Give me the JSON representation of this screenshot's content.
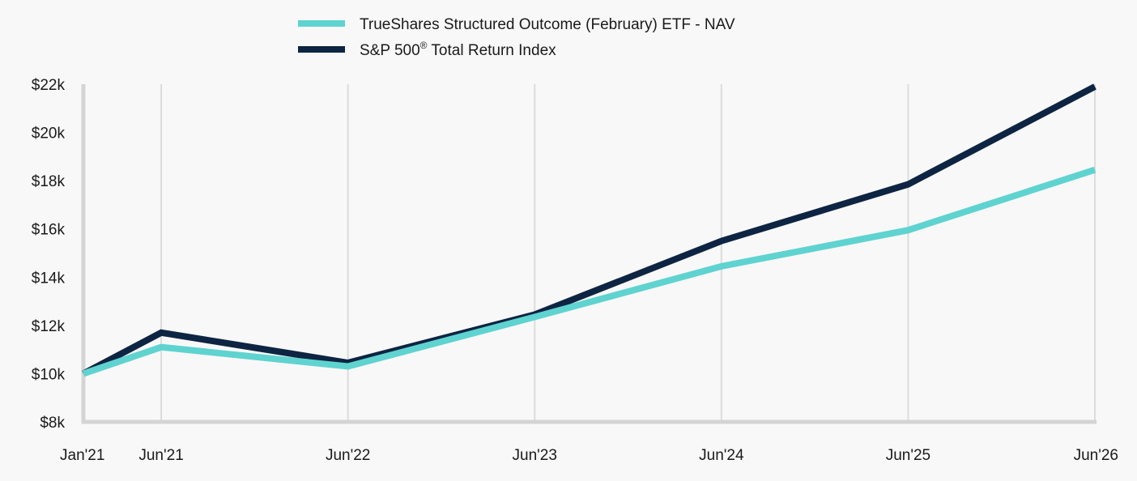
{
  "chart_data": {
    "type": "line",
    "title": "",
    "xlabel": "",
    "ylabel": "",
    "x": [
      "Jan'21",
      "Jun'21",
      "Jun'22",
      "Jun'23",
      "Jun'24",
      "Jun'25",
      "Jun'26"
    ],
    "ylim": [
      8000,
      22000
    ],
    "y_ticks": [
      8000,
      10000,
      12000,
      14000,
      16000,
      18000,
      20000,
      22000
    ],
    "y_tick_labels": [
      "$8k",
      "$10k",
      "$12k",
      "$14k",
      "$16k",
      "$18k",
      "$20k",
      "$22k"
    ],
    "grid": "vertical",
    "legend_position": "top-left",
    "series": [
      {
        "name": "TrueShares Structured Outcome (February) ETF - NAV",
        "color": "#5fd3d0",
        "values": [
          10000,
          11100,
          10300,
          12350,
          14450,
          15950,
          18450
        ]
      },
      {
        "name": "S&P 500",
        "name_superscript": "®",
        "name_suffix": " Total Return Index",
        "color": "#0d2442",
        "values": [
          10000,
          11700,
          10450,
          12450,
          15500,
          17850,
          21900
        ]
      }
    ]
  }
}
